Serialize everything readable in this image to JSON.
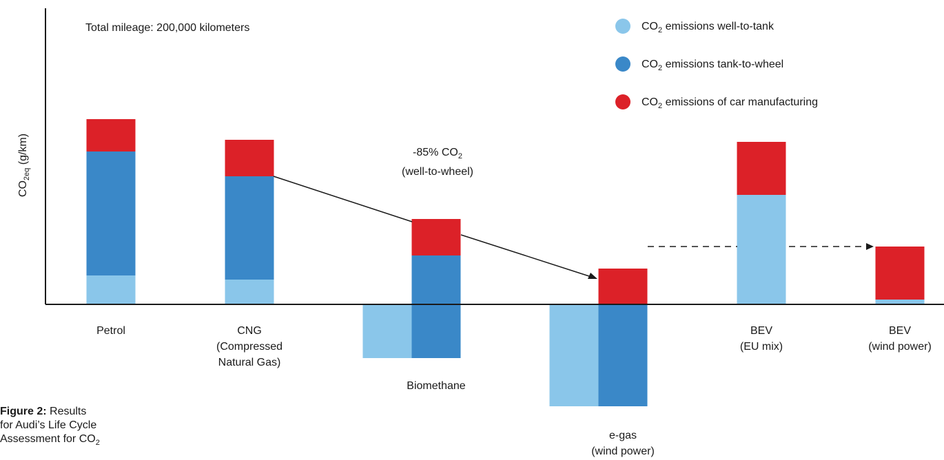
{
  "chart_data": {
    "type": "bar",
    "stacked": true,
    "ylabel": "CO₂eq (g/km)",
    "ylabel_parts": {
      "base": "CO",
      "sub": "2eq",
      "rest": " (g/km)"
    },
    "note": "Total mileage: 200,000 kilometers",
    "annotation": {
      "line1_pre": "-85% CO",
      "line1_sub": "2",
      "line2": "(well-to-wheel)"
    },
    "legend": [
      {
        "key": "wtt",
        "pre": "CO",
        "sub": "2",
        "post": " emissions well-to-tank",
        "color": "#8ac6ea"
      },
      {
        "key": "ttw",
        "pre": "CO",
        "sub": "2",
        "post": " emissions tank-to-wheel",
        "color": "#3a88c8"
      },
      {
        "key": "mfg",
        "pre": "CO",
        "sub": "2",
        "post": " emissions of car manufacturing",
        "color": "#dc2128"
      }
    ],
    "categories": [
      {
        "lines": [
          "Petrol"
        ],
        "bars": [
          {
            "series": "wtt",
            "from": 0,
            "to": 42
          },
          {
            "series": "ttw",
            "from": 42,
            "to": 222
          },
          {
            "series": "mfg",
            "from": 222,
            "to": 269
          }
        ]
      },
      {
        "lines": [
          "CNG",
          "(Compressed",
          "Natural Gas)"
        ],
        "bars": [
          {
            "series": "wtt",
            "from": 0,
            "to": 36
          },
          {
            "series": "ttw",
            "from": 36,
            "to": 186
          },
          {
            "series": "mfg",
            "from": 186,
            "to": 239
          }
        ]
      },
      {
        "lines": [
          "Biomethane"
        ],
        "bars": [
          {
            "series": "wtt",
            "from": 0,
            "to": -78,
            "side": "left"
          },
          {
            "series": "ttw",
            "from": 0,
            "to": 71
          },
          {
            "series": "ttw",
            "from": 0,
            "to": -78
          },
          {
            "series": "mfg",
            "from": 71,
            "to": 124
          }
        ]
      },
      {
        "lines": [
          "e-gas",
          "(wind power)"
        ],
        "bars": [
          {
            "series": "wtt",
            "from": 0,
            "to": -148,
            "side": "left"
          },
          {
            "series": "ttw",
            "from": 0,
            "to": -148
          },
          {
            "series": "mfg",
            "from": 0,
            "to": 52
          }
        ]
      },
      {
        "lines": [
          "BEV",
          "(EU mix)"
        ],
        "bars": [
          {
            "series": "wtt",
            "from": 0,
            "to": 159
          },
          {
            "series": "mfg",
            "from": 159,
            "to": 236
          }
        ]
      },
      {
        "lines": [
          "BEV",
          "(wind power)"
        ],
        "bars": [
          {
            "series": "wtt",
            "from": 0,
            "to": 7
          },
          {
            "series": "mfg",
            "from": 7,
            "to": 84
          }
        ]
      }
    ]
  },
  "caption": {
    "bold": "Figure 2:",
    "line1": " Results",
    "line2": "for Audi’s Life Cycle",
    "line3_pre": "Assessment for CO",
    "line3_sub": "2"
  }
}
